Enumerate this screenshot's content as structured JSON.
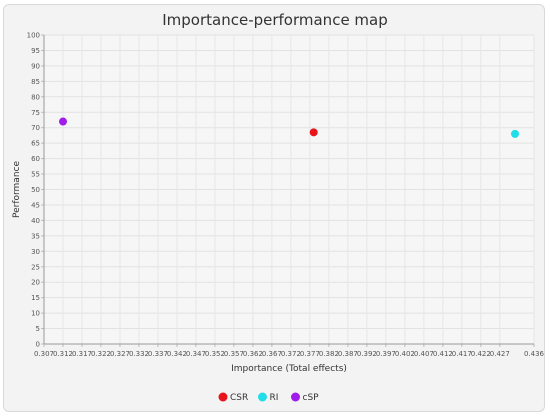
{
  "chart_data": {
    "type": "scatter",
    "title": "Importance-performance map",
    "xlabel": "Importance (Total effects)",
    "ylabel": "Performance",
    "xlim": [
      0.307,
      0.436
    ],
    "ylim": [
      0,
      100
    ],
    "x_ticks": [
      "0.307",
      "0.312",
      "0.317",
      "0.322",
      "0.327",
      "0.332",
      "0.337",
      "0.342",
      "0.347",
      "0.352",
      "0.357",
      "0.362",
      "0.367",
      "0.372",
      "0.377",
      "0.382",
      "0.387",
      "0.392",
      "0.397",
      "0.402",
      "0.407",
      "0.412",
      "0.417",
      "0.422",
      "0.427",
      "0.436"
    ],
    "y_ticks": [
      0,
      5,
      10,
      15,
      20,
      25,
      30,
      35,
      40,
      45,
      50,
      55,
      60,
      65,
      70,
      75,
      80,
      85,
      90,
      95,
      100
    ],
    "grid": true,
    "legend_position": "bottom-center",
    "series": [
      {
        "name": "CSR",
        "color": "#e8141b",
        "points": [
          {
            "x": 0.378,
            "y": 68.5
          }
        ]
      },
      {
        "name": "RI",
        "color": "#21dde8",
        "points": [
          {
            "x": 0.431,
            "y": 68.0
          }
        ]
      },
      {
        "name": "cSP",
        "color": "#a11bea",
        "points": [
          {
            "x": 0.312,
            "y": 72.0
          }
        ]
      }
    ]
  }
}
